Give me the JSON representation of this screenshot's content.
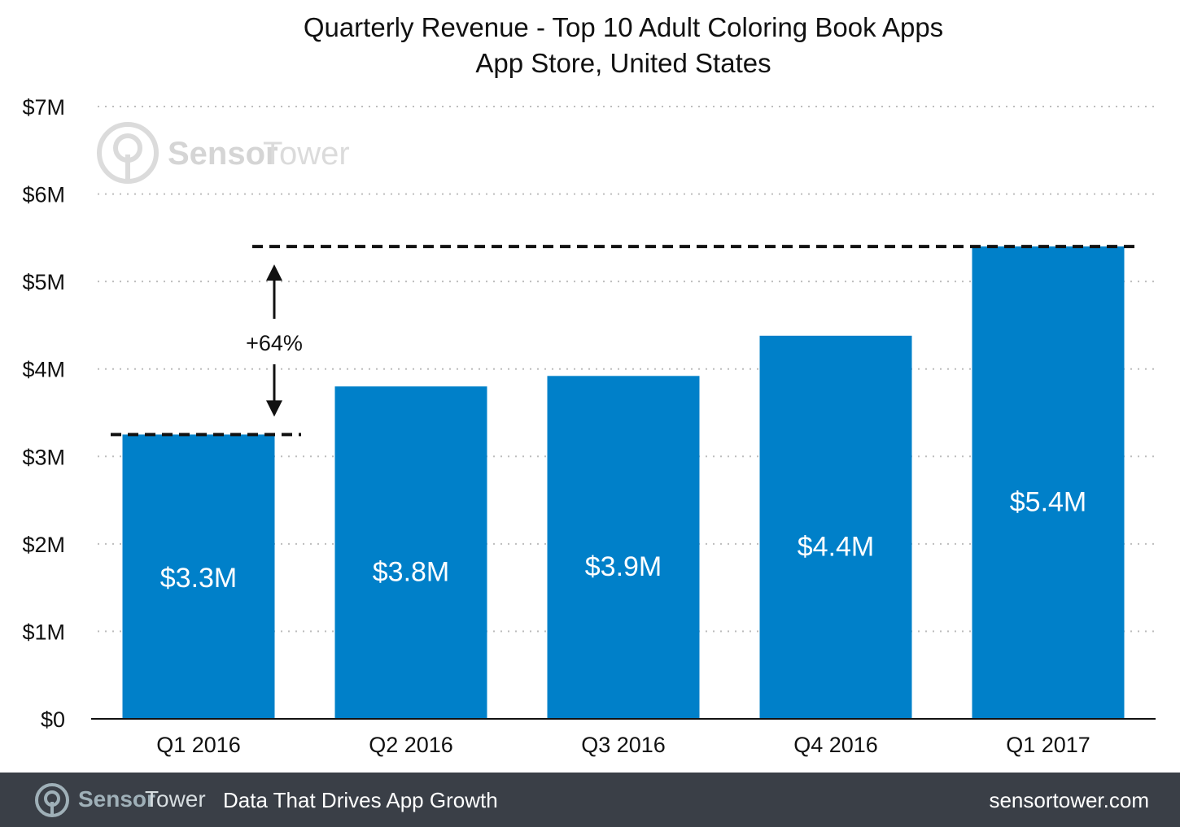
{
  "chart_data": {
    "type": "bar",
    "title": "Quarterly Revenue - Top 10 Adult Coloring Book Apps",
    "subtitle": "App Store, United States",
    "xlabel": "",
    "ylabel": "",
    "categories": [
      "Q1 2016",
      "Q2 2016",
      "Q3 2016",
      "Q4 2016",
      "Q1 2017"
    ],
    "values": [
      3.25,
      3.8,
      3.92,
      4.38,
      5.4
    ],
    "data_labels": [
      "$3.3M",
      "$3.8M",
      "$3.9M",
      "$4.4M",
      "$5.4M"
    ],
    "ylim": [
      0,
      7
    ],
    "yticks": [
      0,
      1,
      2,
      3,
      4,
      5,
      6,
      7
    ],
    "ytick_labels": [
      "$0",
      "$1M",
      "$2M",
      "$3M",
      "$4M",
      "$5M",
      "$6M",
      "$7M"
    ],
    "grid": true,
    "bar_color": "#0080c9",
    "annotation": {
      "text": "+64%",
      "from_category": "Q1 2016",
      "to_category": "Q1 2017"
    }
  },
  "watermark": {
    "brand_part1": "Sensor",
    "brand_part2": "Tower"
  },
  "footer": {
    "brand_part1": "Sensor",
    "brand_part2": "Tower",
    "tagline": "Data That Drives App Growth",
    "website": "sensortower.com",
    "background_color": "#3a3f47"
  }
}
